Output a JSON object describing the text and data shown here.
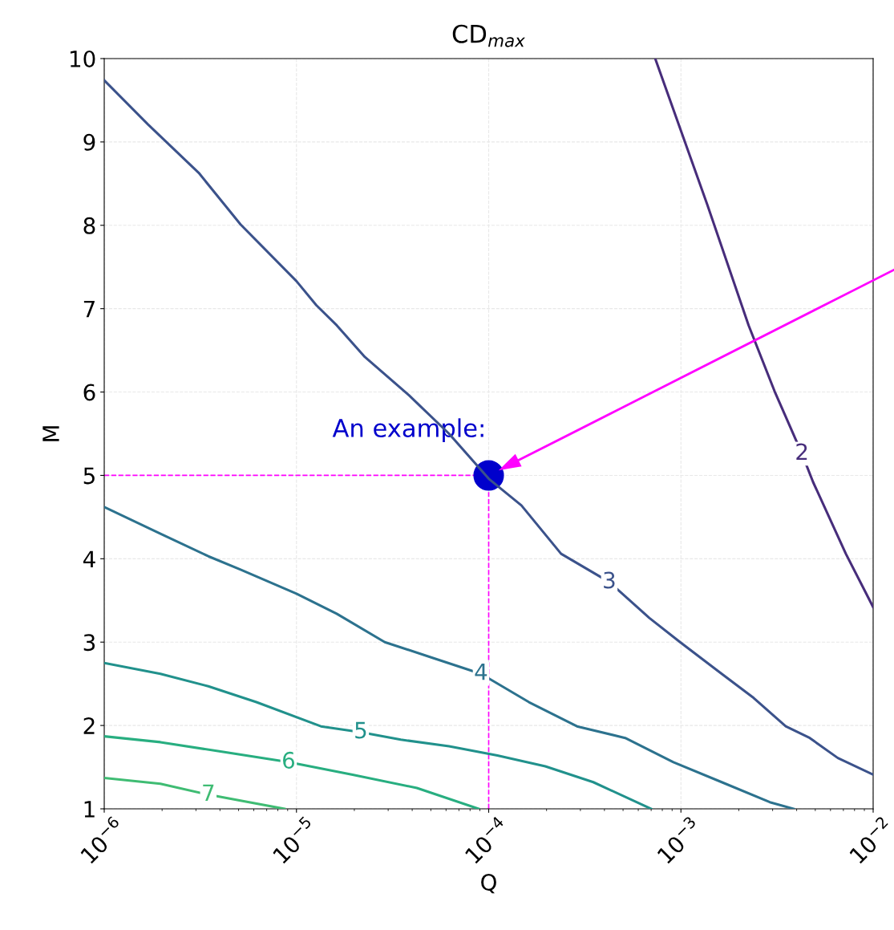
{
  "chart_data": {
    "type": "line",
    "title": "CD$_{max}$",
    "xlabel": "Q",
    "ylabel": "M",
    "log": "x",
    "xlim": [
      1e-06,
      0.01
    ],
    "ylim": [
      1,
      10
    ],
    "xticks": [
      {
        "value": 1e-06,
        "label": "10$^{−6}$"
      },
      {
        "value": 1e-05,
        "label": "10$^{−5}$"
      },
      {
        "value": 0.0001,
        "label": "10$^{−4}$"
      },
      {
        "value": 0.001,
        "label": "10$^{−3}$"
      },
      {
        "value": 0.01,
        "label": "10$^{−2}$"
      }
    ],
    "yticks": [
      1,
      2,
      3,
      4,
      5,
      6,
      7,
      8,
      9,
      10
    ],
    "grid": true,
    "line_style": "solid",
    "marker": "none",
    "series": [
      {
        "name": "2",
        "color": "#472d7b",
        "x": [
          0.000735,
          0.00137,
          0.00225,
          0.00307,
          0.00426,
          0.00487,
          0.00721,
          0.01
        ],
        "values": [
          10,
          8.25,
          6.8,
          6.01,
          5.26,
          4.92,
          4.06,
          3.42
        ]
      },
      {
        "name": "3",
        "color": "#3b528b",
        "x": [
          1e-06,
          1.69e-06,
          3.1e-06,
          5.12e-06,
          1e-05,
          1.27e-05,
          1.62e-05,
          2.27e-05,
          3.85e-05,
          6.22e-05,
          0.0001,
          0.000148,
          0.000238,
          0.000424,
          0.000685,
          0.00099,
          0.00163,
          0.00239,
          0.00351,
          0.00468,
          0.00655,
          0.01
        ],
        "values": [
          9.74,
          9.21,
          8.63,
          8.01,
          7.33,
          7.04,
          6.8,
          6.42,
          5.96,
          5.5,
          4.96,
          4.64,
          4.06,
          3.72,
          3.29,
          3.0,
          2.62,
          2.33,
          1.99,
          1.85,
          1.61,
          1.41
        ]
      },
      {
        "name": "4",
        "color": "#2c728e",
        "x": [
          1e-06,
          1.96e-06,
          3.48e-06,
          5.12e-06,
          1e-05,
          1.62e-05,
          2.88e-05,
          5.13e-05,
          9.12e-05,
          0.000162,
          0.000288,
          0.000513,
          0.000914,
          0.00163,
          0.0029,
          0.00386
        ],
        "values": [
          4.62,
          4.3,
          4.03,
          3.87,
          3.58,
          3.34,
          3.0,
          2.81,
          2.62,
          2.28,
          1.99,
          1.85,
          1.56,
          1.32,
          1.08,
          1.0
        ]
      },
      {
        "name": "5",
        "color": "#21918c",
        "x": [
          1e-06,
          1.96e-06,
          3.48e-06,
          6.19e-06,
          1.34e-05,
          2.16e-05,
          3.49e-05,
          6.22e-05,
          0.000111,
          0.000197,
          0.00035,
          0.0007
        ],
        "values": [
          2.75,
          2.62,
          2.47,
          2.28,
          1.99,
          1.92,
          1.83,
          1.75,
          1.64,
          1.51,
          1.32,
          1.0
        ]
      },
      {
        "name": "6",
        "color": "#28ae80",
        "x": [
          1e-06,
          1.96e-06,
          4.22e-06,
          9.1e-06,
          1.96e-05,
          4.23e-05,
          8.87e-05
        ],
        "values": [
          1.87,
          1.8,
          1.68,
          1.56,
          1.41,
          1.25,
          1.0
        ]
      },
      {
        "name": "7",
        "color": "#3fbc73",
        "x": [
          1e-06,
          1.96e-06,
          3.48e-06,
          8.67e-06
        ],
        "values": [
          1.37,
          1.3,
          1.17,
          1.0
        ]
      },
      {
        "type": "scatter",
        "color": "#0000cc",
        "marker": "circle",
        "x": [
          0.0001
        ],
        "values": [
          5
        ]
      }
    ],
    "ref_lines": [
      {
        "axis": "y",
        "value": 5,
        "color": "#ff00ff",
        "line_style": "dashed"
      },
      {
        "axis": "x",
        "value": 0.0001,
        "color": "#ff00ff",
        "line_style": "dashed"
      }
    ],
    "annotations": [
      {
        "text": "An example:",
        "x": 0.0001,
        "y": 5
      }
    ]
  }
}
